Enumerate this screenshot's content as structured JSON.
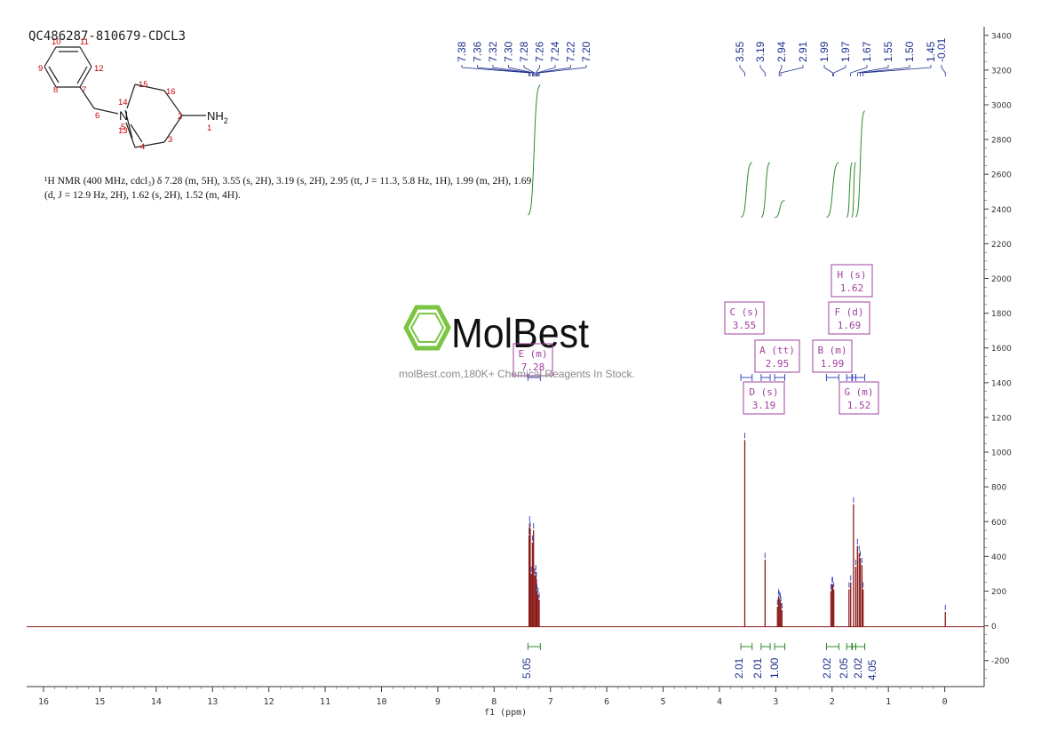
{
  "sample_id": "QC486287-810679-CDCL3",
  "nmr_description": "¹H NMR (400 MHz, cdcl₃) δ 7.28 (m, 5H), 3.55 (s, 2H), 3.19 (s, 2H), 2.95 (tt, J = 11.3, 5.8 Hz, 1H), 1.99 (m, 2H), 1.69 (d, J = 12.9 Hz, 2H), 1.62 (s, 2H), 1.52 (m, 4H).",
  "watermark": {
    "brand": "MolBest",
    "tagline": "molBest.com,180K+ Chemical Reagents In Stock."
  },
  "structure": {
    "atom_numbers": [
      "1",
      "2",
      "3",
      "4",
      "5",
      "6",
      "7",
      "8",
      "9",
      "10",
      "11",
      "12",
      "13",
      "14",
      "15",
      "16"
    ],
    "amine_label": "NH",
    "amine_subscript": "2",
    "nitrogen_label": "N"
  },
  "colors": {
    "spectrum": "#8b1a1a",
    "peak_label": "#1f2f8f",
    "integral_curve": "#2e8b2e",
    "multiplet_box": "#a040a0",
    "integral_value": "#2e8b2e",
    "logo_green": "#6cbf2c"
  },
  "chart_data": {
    "type": "line",
    "title": "",
    "xlabel": "f1 (ppm)",
    "ylabel": "",
    "xlim": [
      16.3,
      -0.7
    ],
    "ylim": [
      -350,
      3450
    ],
    "x_ticks": [
      "16",
      "15",
      "14",
      "13",
      "12",
      "11",
      "10",
      "9",
      "8",
      "7",
      "6",
      "5",
      "4",
      "3",
      "2",
      "1",
      "0"
    ],
    "y_ticks": [
      "3400",
      "3200",
      "3000",
      "2800",
      "2600",
      "2400",
      "2200",
      "2000",
      "1800",
      "1600",
      "1400",
      "1200",
      "1000",
      "800",
      "600",
      "400",
      "200",
      "0",
      "-200"
    ],
    "peak_labels": [
      "7.38",
      "7.36",
      "7.32",
      "7.30",
      "7.28",
      "7.26",
      "7.24",
      "7.22",
      "7.20",
      "3.55",
      "3.19",
      "2.94",
      "2.91",
      "1.99",
      "1.97",
      "1.67",
      "1.55",
      "1.50",
      "1.45",
      "-0.01"
    ],
    "series": [
      {
        "x": [
          7.38,
          7.37,
          7.36,
          7.34,
          7.32,
          7.3,
          7.28,
          7.26,
          7.25,
          7.24,
          7.22,
          7.2,
          3.55,
          3.19,
          2.97,
          2.95,
          2.94,
          2.92,
          2.91,
          2.89,
          2.02,
          2.0,
          1.99,
          1.97,
          1.7,
          1.67,
          1.62,
          1.58,
          1.55,
          1.52,
          1.5,
          1.47,
          1.45,
          -0.01
        ],
        "y": [
          520,
          590,
          560,
          300,
          480,
          550,
          290,
          310,
          270,
          200,
          180,
          150,
          1070,
          380,
          110,
          170,
          160,
          150,
          130,
          90,
          200,
          240,
          240,
          210,
          210,
          250,
          700,
          340,
          460,
          420,
          390,
          350,
          210,
          80
        ]
      }
    ],
    "integrals": [
      {
        "from": 7.4,
        "to": 7.18,
        "value": "5.05"
      },
      {
        "from": 3.62,
        "to": 3.42,
        "value": "2.01"
      },
      {
        "from": 3.26,
        "to": 3.1,
        "value": "2.01"
      },
      {
        "from": 3.02,
        "to": 2.84,
        "value": "1.00"
      },
      {
        "from": 2.1,
        "to": 1.88,
        "value": "2.02"
      },
      {
        "from": 1.74,
        "to": 1.64,
        "value": "2.05"
      },
      {
        "from": 1.65,
        "to": 1.58,
        "value": "2.02"
      },
      {
        "from": 1.58,
        "to": 1.42,
        "value": "4.05"
      }
    ],
    "multiplets": [
      {
        "letter": "E",
        "mult": "m",
        "shift": "7.28"
      },
      {
        "letter": "C",
        "mult": "s",
        "shift": "3.55"
      },
      {
        "letter": "A",
        "mult": "tt",
        "shift": "2.95"
      },
      {
        "letter": "D",
        "mult": "s",
        "shift": "3.19"
      },
      {
        "letter": "B",
        "mult": "m",
        "shift": "1.99"
      },
      {
        "letter": "H",
        "mult": "s",
        "shift": "1.62"
      },
      {
        "letter": "F",
        "mult": "d",
        "shift": "1.69"
      },
      {
        "letter": "G",
        "mult": "m",
        "shift": "1.52"
      }
    ]
  }
}
